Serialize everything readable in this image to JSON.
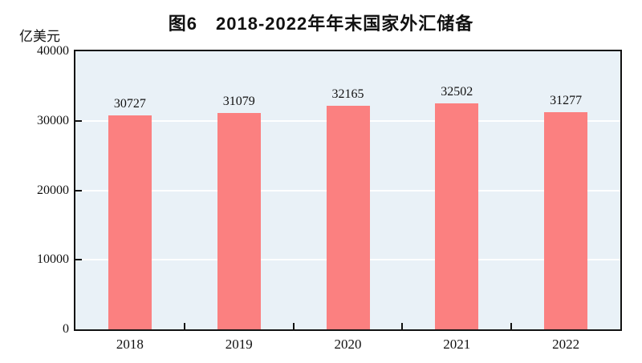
{
  "figure": {
    "title": "图6　2018-2022年年末国家外汇储备",
    "unit_label": "亿美元"
  },
  "chart_data": {
    "type": "bar",
    "title": "图6　2018-2022年年末国家外汇储备",
    "unit_label": "亿美元",
    "categories": [
      "2018",
      "2019",
      "2020",
      "2021",
      "2022"
    ],
    "values": [
      30727,
      31079,
      32165,
      32502,
      31277
    ],
    "value_labels": [
      "30727",
      "31079",
      "32165",
      "32502",
      "31277"
    ],
    "xlabel": "",
    "ylabel": "亿美元",
    "ylim": [
      0,
      40000
    ],
    "yticks": [
      0,
      10000,
      20000,
      30000,
      40000
    ],
    "ytick_labels": [
      "0",
      "10000",
      "20000",
      "30000",
      "40000"
    ],
    "grid": "horizontal-white-lines",
    "legend_position": "none",
    "colors": {
      "bar": "#FB8080",
      "plot_background": "#E9F1F7",
      "axis": "#111111",
      "gridline": "#FFFFFF",
      "text": "#111111",
      "page_background": "#FFFFFF"
    }
  }
}
